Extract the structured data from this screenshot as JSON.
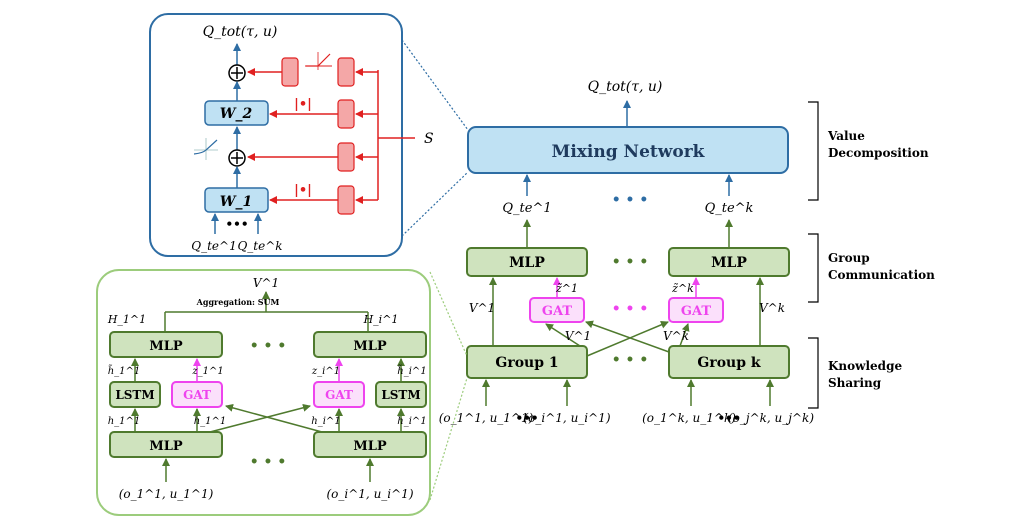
{
  "top_inset": {
    "q_tot": "Q_tot(τ, u)",
    "w1": "W_1",
    "w2": "W_2",
    "abs": "|•|",
    "plus": "⊕",
    "dots": "•••",
    "q_te_1": "Q_te^1",
    "q_te_k": "Q_te^k",
    "s_label": "S"
  },
  "main": {
    "q_tot": "Q_tot(τ, u)",
    "mixing_network": "Mixing Network",
    "q_te_1": "Q_te^1",
    "q_te_k": "Q_te^k",
    "mlp": "MLP",
    "gat": "GAT",
    "group_1": "Group 1",
    "group_k": "Group k",
    "z_1": "z̃^1",
    "z_k": "z̃^k",
    "v_1": "V^1",
    "v_k": "V^k",
    "dots": "• • •",
    "inputs_1_a": "(o_1^1, u_1^1)",
    "inputs_1_b": "(o_i^1, u_i^1)",
    "inputs_k_a": "(o_1^k, u_1^k)",
    "inputs_k_b": "(o_j^k, u_j^k)",
    "input_dots": "•••"
  },
  "bottom_inset": {
    "v1": "V^1",
    "aggregation": "Aggregation: SUM",
    "h1_cap": "H_1^1",
    "hi_cap": "H_i^1",
    "mlp": "MLP",
    "lstm": "LSTM",
    "gat": "GAT",
    "h1_tilde": "h̃_1^1",
    "hi_tilde": "h̃_i^1",
    "z1": "z_1^1",
    "zi": "z_i^1",
    "h1": "h_1^1",
    "hi": "h_i^1",
    "in_1": "(o_1^1, u_1^1)",
    "in_i": "(o_i^1, u_i^1)",
    "dots": "• • •"
  },
  "brackets": {
    "value_decomposition_line1": "Value",
    "value_decomposition_line2": "Decomposition",
    "group_communication_line1": "Group",
    "group_communication_line2": "Communication",
    "knowledge_sharing_line1": "Knowledge",
    "knowledge_sharing_line2": "Sharing"
  },
  "colors": {
    "blue_fill": "#bfe1f3",
    "blue_stroke": "#2e6da4",
    "green_fill": "#cfe3be",
    "green_stroke": "#4f7a2e",
    "magenta": "#ee44ee",
    "red": "#e02020",
    "red_fill": "#f4a7a7"
  }
}
